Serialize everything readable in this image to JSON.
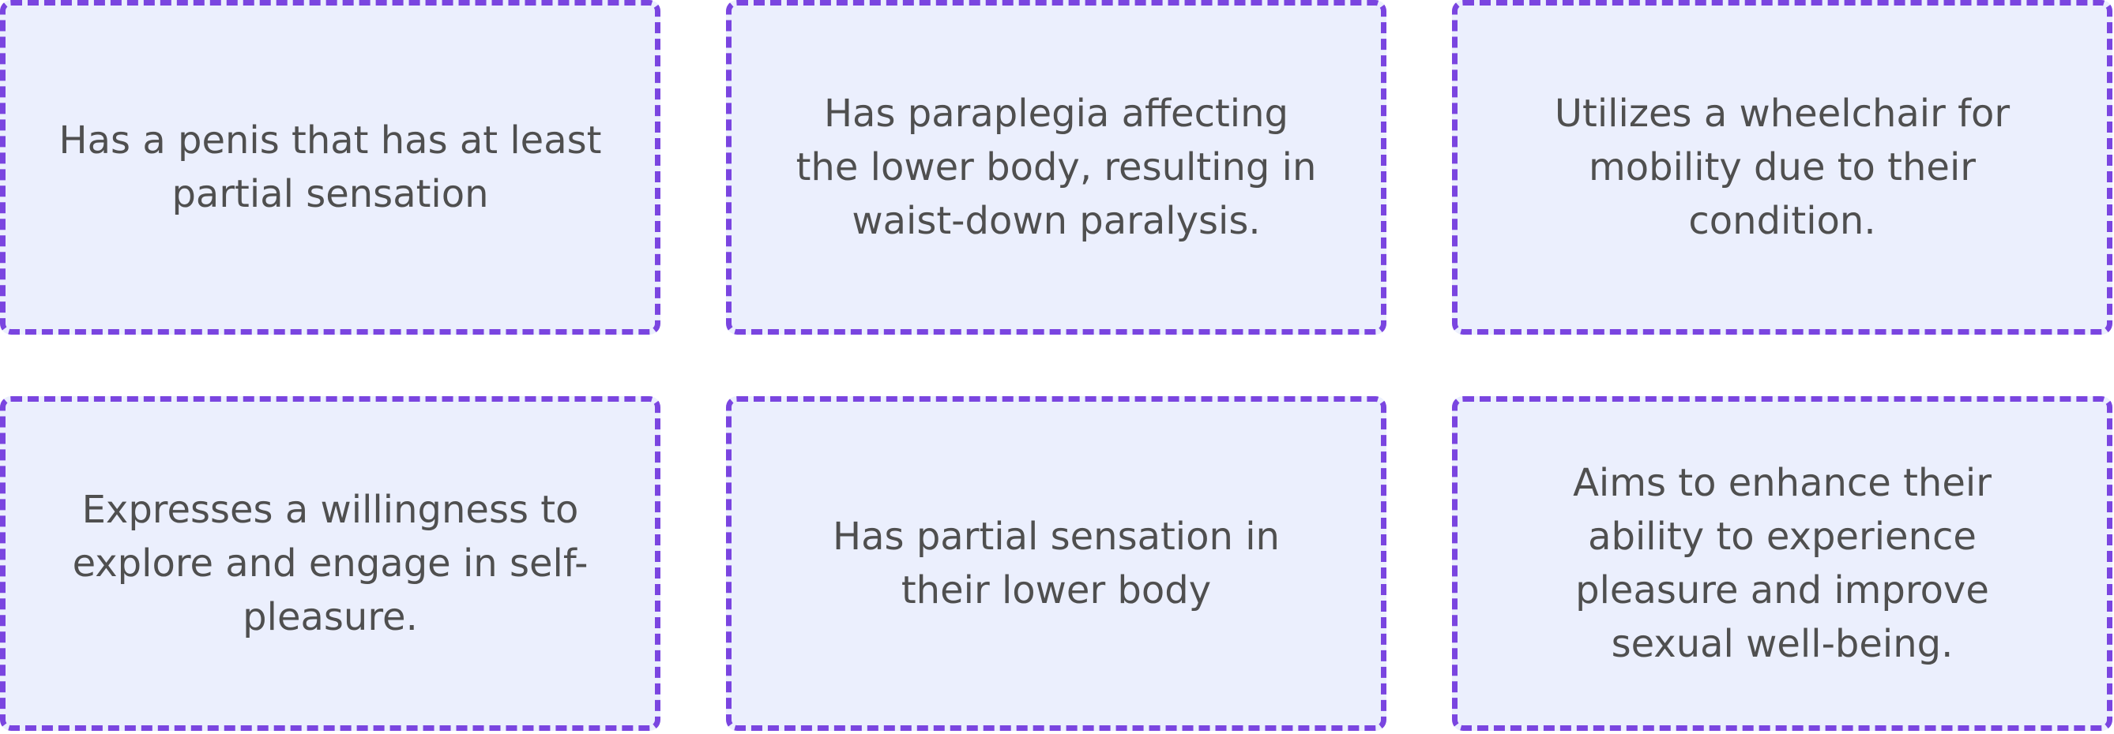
{
  "cards": [
    {
      "text": "Has a penis that has at least partial sensation"
    },
    {
      "text": "Has paraplegia affecting the lower body, resulting in waist-down paralysis."
    },
    {
      "text": "Utilizes a wheelchair for mobility due to their condition."
    },
    {
      "text": "Expresses a willingness to explore and engage in self-pleasure."
    },
    {
      "text": "Has partial sensation in their lower body"
    },
    {
      "text": "Aims to enhance their ability to experience pleasure and improve sexual well-being."
    }
  ],
  "colors": {
    "card_background": "#ebeffd",
    "card_border": "#7a45e0",
    "text": "#4f4f4f"
  }
}
